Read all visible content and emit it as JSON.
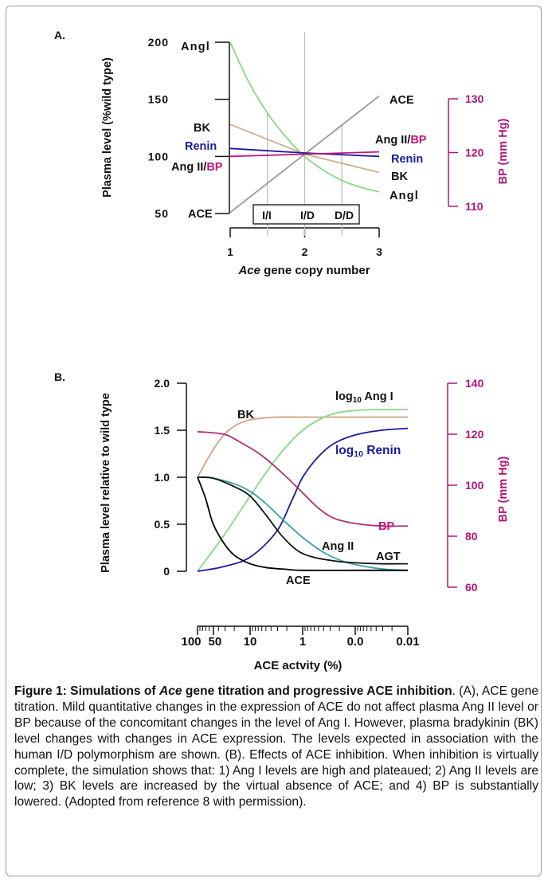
{
  "colors": {
    "angI": "#86d986",
    "ace": "#9a9a9a",
    "bk": "#cdb08b",
    "renin": "#1a1aa0",
    "angII_bp": "#c0177c",
    "bp_axis": "#b0157a",
    "guide": "#bfbfbf",
    "bk_b": "#d2a283",
    "angII_b": "#3aa0a4",
    "ace_b": "#000000",
    "agt_b": "#111111",
    "bp_b": "#b0306e"
  },
  "chart_data": [
    {
      "type": "line",
      "panel_label": "A.",
      "xlabel_italic": "Ace",
      "xlabel_rest": " gene copy number",
      "ylabel": "Plasma level (%wild type)",
      "y2label": "BP (mm Hg)",
      "xlim": [
        1,
        3
      ],
      "ylim": [
        50,
        200
      ],
      "y2lim": [
        110,
        130
      ],
      "x_ticks": [
        "1",
        "2",
        "3"
      ],
      "y_ticks": [
        "200",
        "150",
        "100",
        "50"
      ],
      "y2_ticks": [
        "130",
        "120",
        "110"
      ],
      "genotypes": [
        "I/I",
        "I/D",
        "D/D"
      ],
      "genotype_x": [
        1.5,
        2,
        2.5
      ],
      "series": [
        {
          "key": "angI",
          "x": [
            1,
            1.25,
            1.5,
            1.75,
            2,
            2.25,
            2.5,
            2.75,
            3
          ],
          "y": [
            200,
            165,
            138,
            117,
            100,
            88,
            79,
            73,
            69
          ]
        },
        {
          "key": "ace",
          "x": [
            1,
            3
          ],
          "y": [
            51,
            153
          ]
        },
        {
          "key": "bk",
          "x": [
            1,
            2,
            3
          ],
          "y": [
            128,
            102,
            86
          ]
        },
        {
          "key": "renin",
          "x": [
            1,
            2,
            3
          ],
          "y": [
            107,
            103,
            100
          ]
        },
        {
          "key": "angII_bp",
          "x": [
            1,
            2,
            3
          ],
          "y": [
            100,
            102,
            104
          ]
        }
      ],
      "left_labels": {
        "angI": "Angl",
        "bk": "BK",
        "renin": "Renin",
        "angII": "Ang II/",
        "bp": "BP",
        "ace": "ACE"
      },
      "right_labels": {
        "ace": "ACE",
        "angII": "Ang II/",
        "bp": "BP",
        "renin": "Renin",
        "bk": "BK",
        "angI": "Angl"
      }
    },
    {
      "type": "line",
      "panel_label": "B.",
      "xlabel": "ACE actvity (%)",
      "ylabel": "Plasma level relative to wild type",
      "y2label": "BP (mm Hg)",
      "ylim": [
        0,
        2.0
      ],
      "y2lim": [
        60,
        140
      ],
      "x_ticks": [
        "100",
        "50",
        "10",
        "1",
        "0.0",
        "0.01"
      ],
      "x_tick_pos": [
        0,
        0.301,
        1,
        2,
        3,
        4
      ],
      "xlim_log": [
        0,
        4
      ],
      "y_ticks": [
        "2.0",
        "1.5",
        "1.0",
        "0.5",
        "0"
      ],
      "y2_ticks": [
        "140",
        "120",
        "100",
        "80",
        "60"
      ],
      "series": [
        {
          "key": "bk_b",
          "x": [
            0,
            0.25,
            0.5,
            0.75,
            1,
            1.25,
            1.5,
            2,
            2.5,
            3,
            3.5,
            4
          ],
          "y": [
            1.0,
            1.25,
            1.45,
            1.56,
            1.61,
            1.63,
            1.64,
            1.64,
            1.64,
            1.64,
            1.64,
            1.64
          ]
        },
        {
          "key": "angI_b",
          "x": [
            0,
            0.5,
            1,
            1.5,
            2,
            2.5,
            3,
            3.5,
            4
          ],
          "y": [
            0.0,
            0.38,
            0.8,
            1.2,
            1.5,
            1.66,
            1.71,
            1.72,
            1.72
          ]
        },
        {
          "key": "renin_b",
          "x": [
            0,
            0.5,
            1,
            1.5,
            1.8,
            2,
            2.3,
            2.6,
            3,
            3.5,
            4
          ],
          "y": [
            0.0,
            0.05,
            0.15,
            0.42,
            0.76,
            1.0,
            1.22,
            1.36,
            1.45,
            1.5,
            1.52
          ]
        },
        {
          "key": "angII_b",
          "x": [
            0,
            0.3,
            0.7,
            1,
            1.3,
            1.6,
            2,
            2.4,
            2.8,
            3.2,
            3.6,
            4
          ],
          "y": [
            1.0,
            0.99,
            0.93,
            0.85,
            0.72,
            0.56,
            0.36,
            0.2,
            0.1,
            0.05,
            0.02,
            0.01
          ]
        },
        {
          "key": "agt_b",
          "x": [
            0,
            0.3,
            0.7,
            1,
            1.3,
            1.6,
            1.9,
            2.2,
            2.6,
            3,
            3.5,
            4
          ],
          "y": [
            1.0,
            0.99,
            0.9,
            0.8,
            0.6,
            0.38,
            0.22,
            0.15,
            0.11,
            0.09,
            0.08,
            0.08
          ]
        },
        {
          "key": "ace_b",
          "x": [
            0,
            0.15,
            0.3,
            0.5,
            0.7,
            1,
            1.3,
            1.7,
            2,
            3,
            4
          ],
          "y": [
            1.0,
            0.78,
            0.5,
            0.3,
            0.17,
            0.08,
            0.04,
            0.02,
            0.01,
            0.01,
            0.01
          ]
        },
        {
          "key": "bp_b",
          "axis": "y2",
          "x": [
            0,
            0.5,
            0.8,
            1.2,
            1.6,
            2,
            2.3,
            2.6,
            3,
            3.5,
            4
          ],
          "y": [
            121,
            120,
            117,
            112,
            105,
            97,
            91,
            87,
            85,
            84,
            84
          ]
        }
      ],
      "labels": {
        "bk": "BK",
        "angI_prefix": "log",
        "angI_sub": "10",
        "angI_rest": " Ang I",
        "renin_prefix": "log",
        "renin_sub": "10",
        "renin_rest": " Renin",
        "bp": "BP",
        "angII": "Ang II",
        "agt": "AGT",
        "ace": "ACE"
      }
    }
  ],
  "caption": {
    "bold_1": "Figure 1: Simulations of ",
    "bold_italic": "Ace",
    "bold_2": " gene titration and progressive ACE inhibition",
    "body": ". (A), ACE gene titration.  Mild quantitative changes in the expression of ACE do not affect plasma Ang II level or BP because of the concomitant changes in the level of Ang I. However, plasma bradykinin (BK) level changes with changes in ACE expression. The levels expected in association with the human I/D polymorphism are shown. (B). Effects of ACE inhibition. When inhibition is virtually complete, the simulation shows that: 1) Ang I levels are high and plateaued; 2) Ang II levels are low; 3) BK levels are increased by the virtual absence of ACE; and 4) BP is substantially lowered.  (Adopted from reference 8 with permission)."
  }
}
